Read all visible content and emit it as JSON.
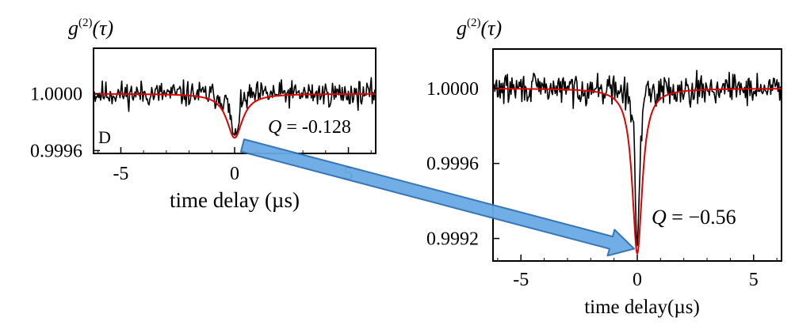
{
  "colors": {
    "data_line": "#000000",
    "fit_line": "#e00000",
    "arrow_fill": "#6aaae4",
    "arrow_stroke": "#2f6fb3"
  },
  "chart_data": [
    {
      "type": "line",
      "ylabel": {
        "base": "g",
        "sup": "(2)",
        "arg": "(τ)"
      },
      "xlabel": "time delay (µs)",
      "panel_label": "D",
      "annotation": {
        "symbol": "Q",
        "text": " = -0.128"
      },
      "xlim": [
        -6.2,
        6.2
      ],
      "ylim": [
        0.99958,
        1.00032
      ],
      "xticks": [
        -5,
        0,
        5
      ],
      "xtick_labels": [
        "-5",
        "0",
        "5"
      ],
      "yticks": [
        0.9996,
        1.0
      ],
      "ytick_labels": [
        "0.9996",
        "1.0000"
      ],
      "grid": false,
      "series": [
        {
          "role": "data",
          "baseline": 1.0,
          "dip_depth": 0.00033,
          "dip_width": 0.18,
          "noise": 4.5e-05,
          "points": 320
        },
        {
          "role": "fit",
          "baseline": 1.0,
          "dip_depth": 0.00031,
          "dip_width": 0.42
        }
      ]
    },
    {
      "type": "line",
      "ylabel": {
        "base": "g",
        "sup": "(2)",
        "arg": "(τ)"
      },
      "xlabel": "time delay(µs)",
      "annotation": {
        "symbol": "Q",
        "text": " = −0.56"
      },
      "xlim": [
        -6.2,
        6.2
      ],
      "ylim": [
        0.99908,
        1.00021
      ],
      "xticks": [
        -5,
        0,
        5
      ],
      "xtick_labels": [
        "-5",
        "0",
        "5"
      ],
      "yticks": [
        0.9992,
        0.9996,
        1.0
      ],
      "ytick_labels": [
        "0.9992",
        "0.9996",
        "1.0000"
      ],
      "grid": false,
      "series": [
        {
          "role": "data",
          "baseline": 1.0,
          "dip_depth": 0.00088,
          "dip_width": 0.1,
          "noise": 4e-05,
          "points": 320
        },
        {
          "role": "fit",
          "baseline": 1.0,
          "dip_depth": 0.00088,
          "dip_width": 0.26
        }
      ]
    }
  ]
}
